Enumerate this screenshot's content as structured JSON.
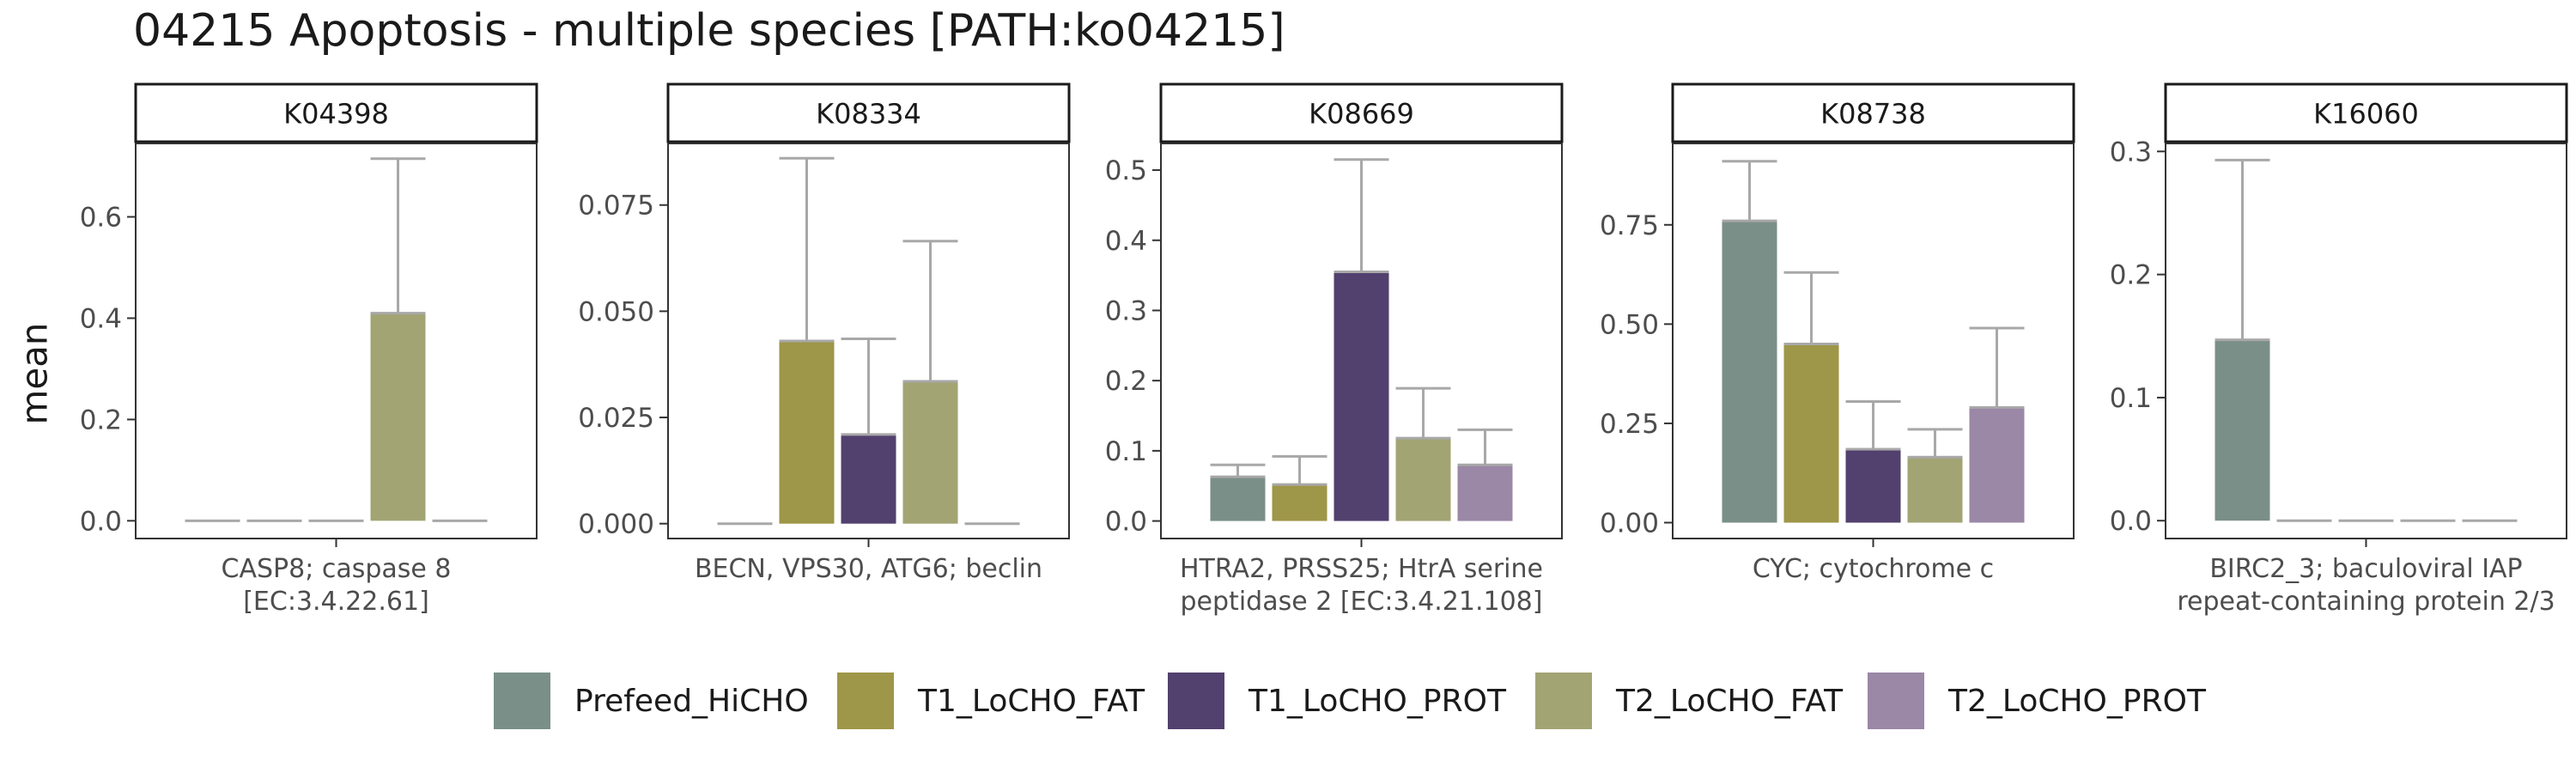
{
  "chart_data": {
    "type": "bar",
    "title": "04215 Apoptosis - multiple species [PATH:ko04215]",
    "ylabel": "mean",
    "legend_position": "bottom",
    "error_bars": true,
    "series_names": [
      "Prefeed_HiCHO",
      "T1_LoCHO_FAT",
      "T1_LoCHO_PROT",
      "T2_LoCHO_FAT",
      "T2_LoCHO_PROT"
    ],
    "series_colors": [
      "#7a8f88",
      "#9e9648",
      "#52406e",
      "#a2a474",
      "#9b87a6"
    ],
    "error_color": "#a8a8a8",
    "panels": [
      {
        "id": "K04398",
        "category": [
          "CASP8; caspase 8",
          "[EC:3.4.22.61]"
        ],
        "ylim": [
          -0.035,
          0.745
        ],
        "ticks": [
          0.0,
          0.2,
          0.4,
          0.6
        ],
        "tick_labels": [
          "0.0",
          "0.2",
          "0.4",
          "0.6"
        ],
        "values": [
          0.0,
          0.0,
          0.0,
          0.41,
          0.0
        ],
        "errors": [
          0.0,
          0.0,
          0.0,
          0.715,
          0.0
        ]
      },
      {
        "id": "K08334",
        "category": [
          "BECN, VPS30, ATG6; beclin"
        ],
        "ylim": [
          -0.0035,
          0.0895
        ],
        "ticks": [
          0.0,
          0.025,
          0.05,
          0.075
        ],
        "tick_labels": [
          "0.000",
          "0.025",
          "0.050",
          "0.075"
        ],
        "values": [
          0.0,
          0.043,
          0.021,
          0.0335,
          0.0
        ],
        "errors": [
          0.0,
          0.086,
          0.0435,
          0.0665,
          0.0
        ]
      },
      {
        "id": "K08669",
        "category": [
          "HTRA2, PRSS25; HtrA serine",
          "peptidase 2 [EC:3.4.21.108]"
        ],
        "ylim": [
          -0.025,
          0.538
        ],
        "ticks": [
          0.0,
          0.1,
          0.2,
          0.3,
          0.4,
          0.5
        ],
        "tick_labels": [
          "0.0",
          "0.1",
          "0.2",
          "0.3",
          "0.4",
          "0.5"
        ],
        "values": [
          0.063,
          0.052,
          0.355,
          0.118,
          0.08
        ],
        "errors": [
          0.08,
          0.092,
          0.515,
          0.189,
          0.13
        ]
      },
      {
        "id": "K08738",
        "category": [
          "CYC; cytochrome c"
        ],
        "ylim": [
          -0.04,
          0.955
        ],
        "ticks": [
          0.0,
          0.25,
          0.5,
          0.75
        ],
        "tick_labels": [
          "0.00",
          "0.25",
          "0.50",
          "0.75"
        ],
        "values": [
          0.76,
          0.45,
          0.185,
          0.165,
          0.29
        ],
        "errors": [
          0.91,
          0.63,
          0.305,
          0.235,
          0.49
        ]
      },
      {
        "id": "K16060",
        "category": [
          "BIRC2_3; baculoviral IAP",
          "repeat-containing protein 2/3"
        ],
        "ylim": [
          -0.0145,
          0.3065
        ],
        "ticks": [
          0.0,
          0.1,
          0.2,
          0.3
        ],
        "tick_labels": [
          "0.0",
          "0.1",
          "0.2",
          "0.3"
        ],
        "values": [
          0.147,
          0.0,
          0.0,
          0.0,
          0.0
        ],
        "errors": [
          0.293,
          0.0,
          0.0,
          0.0,
          0.0
        ]
      }
    ]
  }
}
